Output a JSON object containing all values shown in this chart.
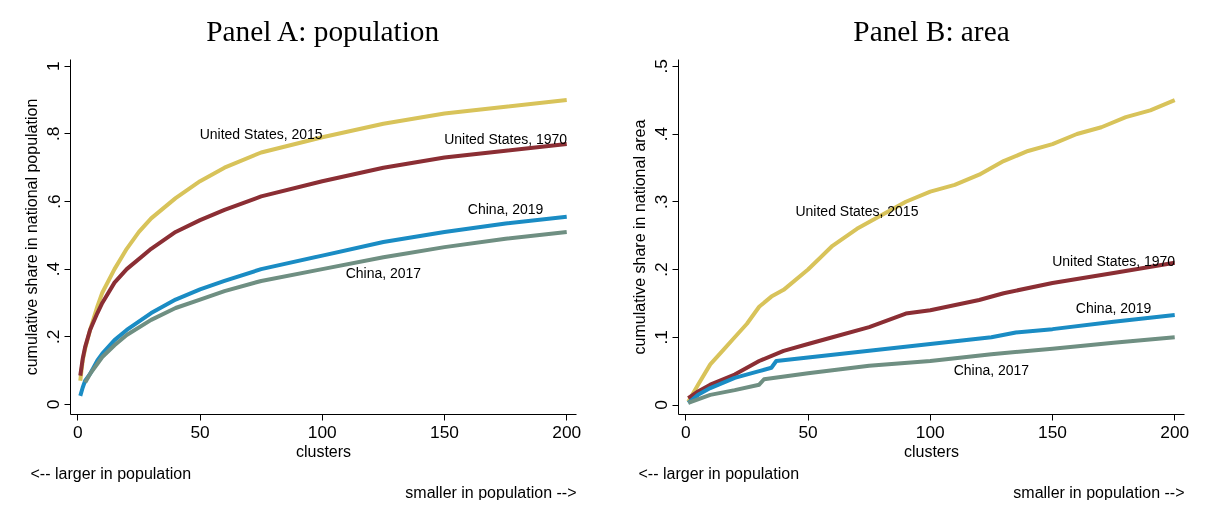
{
  "chart_data": [
    {
      "type": "line",
      "title": "Panel A: population",
      "xlabel": "clusters",
      "ylabel": "cumulative share in national population",
      "grid": false,
      "xlim": [
        -3,
        204
      ],
      "xticks": [
        0,
        50,
        100,
        150,
        200
      ],
      "ylim": [
        -0.03,
        1.02
      ],
      "yticks": [
        {
          "value": 0,
          "label": "0"
        },
        {
          "value": 0.2,
          "label": ".2"
        },
        {
          "value": 0.4,
          "label": ".4"
        },
        {
          "value": 0.6,
          "label": ".6"
        },
        {
          "value": 0.8,
          "label": ".8"
        },
        {
          "value": 1,
          "label": "1"
        }
      ],
      "series": [
        {
          "name": "United States, 2015",
          "color": "#d8c35a",
          "x": [
            1,
            2,
            3,
            5,
            8,
            10,
            15,
            20,
            25,
            30,
            40,
            50,
            60,
            75,
            100,
            125,
            150,
            175,
            200
          ],
          "values": [
            0.07,
            0.13,
            0.165,
            0.22,
            0.29,
            0.33,
            0.4,
            0.46,
            0.51,
            0.55,
            0.61,
            0.66,
            0.7,
            0.745,
            0.79,
            0.83,
            0.86,
            0.88,
            0.9
          ]
        },
        {
          "name": "United States, 1970",
          "color": "#8b2e34",
          "x": [
            1,
            2,
            3,
            5,
            8,
            10,
            15,
            20,
            30,
            40,
            50,
            60,
            75,
            100,
            125,
            150,
            175,
            200
          ],
          "values": [
            0.085,
            0.135,
            0.17,
            0.22,
            0.27,
            0.3,
            0.36,
            0.4,
            0.46,
            0.51,
            0.545,
            0.575,
            0.615,
            0.66,
            0.7,
            0.73,
            0.75,
            0.77
          ]
        },
        {
          "name": "China, 2019",
          "color": "#1a8cc4",
          "x": [
            1,
            2,
            3,
            5,
            8,
            10,
            15,
            20,
            30,
            40,
            50,
            60,
            75,
            100,
            125,
            150,
            175,
            200
          ],
          "values": [
            0.025,
            0.05,
            0.07,
            0.09,
            0.13,
            0.15,
            0.19,
            0.22,
            0.27,
            0.31,
            0.34,
            0.365,
            0.4,
            0.44,
            0.48,
            0.51,
            0.535,
            0.555
          ]
        },
        {
          "name": "China, 2017",
          "color": "#6f8f82",
          "x": [
            3,
            5,
            8,
            10,
            15,
            20,
            30,
            40,
            50,
            60,
            75,
            100,
            125,
            150,
            175,
            200
          ],
          "values": [
            0.065,
            0.09,
            0.12,
            0.14,
            0.175,
            0.205,
            0.25,
            0.285,
            0.31,
            0.335,
            0.365,
            0.4,
            0.435,
            0.465,
            0.49,
            0.51
          ]
        }
      ],
      "annotations": [
        "<-- larger in population",
        "smaller in population -->"
      ]
    },
    {
      "type": "line",
      "title": "Panel B: area",
      "xlabel": "clusters",
      "ylabel": "cumulative share in national area",
      "grid": false,
      "xlim": [
        -3,
        204
      ],
      "xticks": [
        0,
        50,
        100,
        150,
        200
      ],
      "ylim": [
        -0.014,
        0.51
      ],
      "yticks": [
        {
          "value": 0,
          "label": "0"
        },
        {
          "value": 0.1,
          "label": ".1"
        },
        {
          "value": 0.2,
          "label": ".2"
        },
        {
          "value": 0.3,
          "label": ".3"
        },
        {
          "value": 0.4,
          "label": ".4"
        },
        {
          "value": 0.5,
          "label": ".5"
        }
      ],
      "series": [
        {
          "name": "United States, 2015",
          "color": "#d8c35a",
          "x": [
            1,
            5,
            10,
            15,
            20,
            25,
            30,
            35,
            40,
            50,
            60,
            70,
            80,
            90,
            100,
            110,
            120,
            130,
            140,
            150,
            160,
            170,
            180,
            190,
            200
          ],
          "values": [
            0.005,
            0.03,
            0.06,
            0.08,
            0.1,
            0.12,
            0.145,
            0.16,
            0.17,
            0.2,
            0.235,
            0.26,
            0.28,
            0.3,
            0.315,
            0.325,
            0.34,
            0.36,
            0.375,
            0.385,
            0.4,
            0.41,
            0.425,
            0.435,
            0.45
          ]
        },
        {
          "name": "United States, 1970",
          "color": "#8b2e34",
          "x": [
            1,
            5,
            10,
            20,
            30,
            40,
            50,
            60,
            75,
            90,
            100,
            120,
            130,
            150,
            175,
            200
          ],
          "values": [
            0.01,
            0.02,
            0.03,
            0.045,
            0.065,
            0.08,
            0.09,
            0.1,
            0.115,
            0.135,
            0.14,
            0.155,
            0.165,
            0.18,
            0.195,
            0.21
          ]
        },
        {
          "name": "China, 2019",
          "color": "#1a8cc4",
          "x": [
            1,
            5,
            10,
            20,
            30,
            35,
            37,
            50,
            75,
            100,
            125,
            135,
            150,
            175,
            200
          ],
          "values": [
            0.003,
            0.015,
            0.025,
            0.04,
            0.05,
            0.055,
            0.065,
            0.07,
            0.08,
            0.09,
            0.1,
            0.107,
            0.112,
            0.123,
            0.133
          ]
        },
        {
          "name": "China, 2017",
          "color": "#6f8f82",
          "x": [
            1,
            10,
            20,
            30,
            32,
            50,
            75,
            100,
            125,
            150,
            175,
            200
          ],
          "values": [
            0.003,
            0.015,
            0.022,
            0.03,
            0.038,
            0.047,
            0.058,
            0.065,
            0.075,
            0.083,
            0.092,
            0.1
          ]
        }
      ],
      "annotations": [
        "<-- larger in population",
        "smaller in population -->"
      ]
    }
  ]
}
